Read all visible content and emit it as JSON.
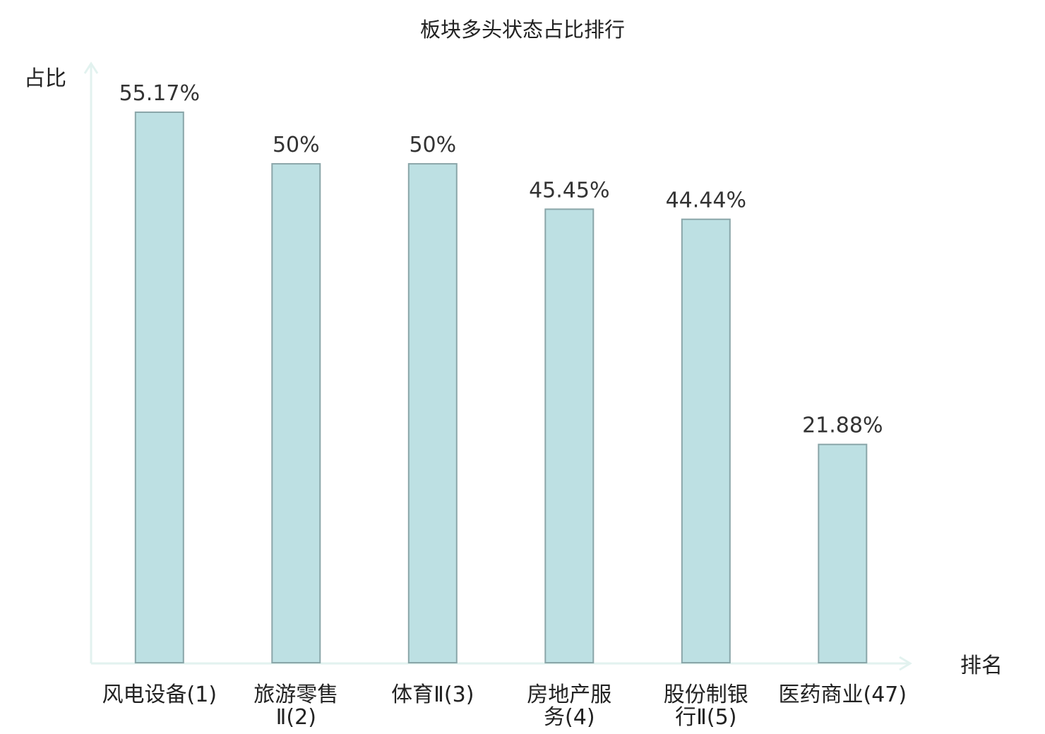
{
  "chart_data": {
    "type": "bar",
    "title": "板块多头状态占比排行",
    "ylabel": "占比",
    "xlabel": "排名",
    "categories": [
      [
        "风电设备(1)"
      ],
      [
        "旅游零售",
        "Ⅱ(2)"
      ],
      [
        "体育Ⅱ(3)"
      ],
      [
        "房地产服",
        "务(4)"
      ],
      [
        "股份制银",
        "行Ⅱ(5)"
      ],
      [
        "医药商业(47)"
      ]
    ],
    "values": [
      55.17,
      50,
      50,
      45.45,
      44.44,
      21.88
    ],
    "value_labels": [
      "55.17%",
      "50%",
      "50%",
      "45.45%",
      "44.44%",
      "21.88%"
    ],
    "highlight_index": 5,
    "ylim": [
      0,
      60
    ],
    "grid": false,
    "colors": {
      "bar_fill": "#bde0e3",
      "bar_stroke": "#8aa6a9",
      "axis": "#e2f2ef",
      "highlight_text": "#e02020",
      "text": "#222222"
    }
  }
}
